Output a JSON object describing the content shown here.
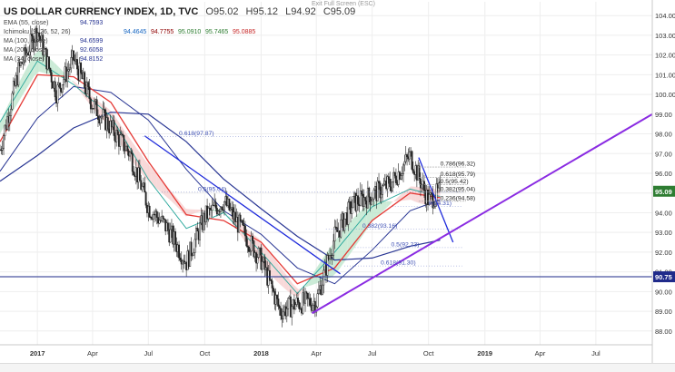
{
  "header": {
    "title": "US DOLLAR CURRENCY INDEX, 1D, TVC",
    "open": "O95.02",
    "high": "H95.12",
    "low": "L94.92",
    "close": "C95.09"
  },
  "exit_fullscreen": "Exit Full Screen (ESC)",
  "indicators": [
    {
      "name": "EMA (55, close)",
      "values": [
        "94.7593"
      ],
      "color": "#e53935"
    },
    {
      "name": "Ichimoku (9, 26, 52, 26)",
      "values": [
        "94.4645",
        "94.7755",
        "95.0910",
        "95.7465",
        "95.0885"
      ],
      "color": "#26a69a"
    },
    {
      "name": "MA (100, close)",
      "values": [
        "94.6599"
      ],
      "color": "#283593"
    },
    {
      "name": "MA (200, close)",
      "values": [
        "92.6058"
      ],
      "color": "#283593"
    },
    {
      "name": "MA (34, close)",
      "values": [
        "94.8152"
      ],
      "color": "#283593"
    }
  ],
  "colors": {
    "candle_up": "#333333",
    "candle_down": "#222222",
    "ema": "#e53935",
    "ma": "#283593",
    "tenkan": "#26a69a",
    "cloud_bull": "#b9e4c9",
    "cloud_bear": "#f6cccc",
    "trendline": "#1e2adb",
    "support_line": "#8a2be2",
    "fib": "#3f51b5",
    "price_badge": "#2e7d32",
    "level_badge": "#1f2a8a"
  },
  "chart_data": {
    "type": "candlestick",
    "title": "US DOLLAR CURRENCY INDEX, 1D, TVC",
    "ylim": [
      87.3,
      104.7
    ],
    "y_ticks": [
      "104.00",
      "103.00",
      "102.00",
      "101.00",
      "100.00",
      "99.00",
      "98.00",
      "97.00",
      "96.00",
      "95.00",
      "94.00",
      "93.00",
      "92.00",
      "91.00",
      "90.00",
      "89.00",
      "88.00"
    ],
    "x_ticks": [
      {
        "label": "2017",
        "t": "2017-01"
      },
      {
        "label": "Apr",
        "t": "2017-04"
      },
      {
        "label": "Jul",
        "t": "2017-07"
      },
      {
        "label": "Oct",
        "t": "2017-10"
      },
      {
        "label": "2018",
        "t": "2018-01"
      },
      {
        "label": "Apr",
        "t": "2018-04"
      },
      {
        "label": "Jul",
        "t": "2018-07"
      },
      {
        "label": "Oct",
        "t": "2018-10"
      },
      {
        "label": "2019",
        "t": "2019-01"
      },
      {
        "label": "Apr",
        "t": "2019-04"
      },
      {
        "label": "Jul",
        "t": "2019-07"
      }
    ],
    "xlim": [
      "2016-11",
      "2019-10"
    ],
    "price_path": [
      [
        "2016-11",
        97.2
      ],
      [
        "2016-12",
        101.2
      ],
      [
        "2017-01",
        103.3
      ],
      [
        "2017-02",
        100.1
      ],
      [
        "2017-03",
        101.8
      ],
      [
        "2017-04",
        99.5
      ],
      [
        "2017-05",
        98.3
      ],
      [
        "2017-06",
        97.0
      ],
      [
        "2017-07",
        94.3
      ],
      [
        "2017-08",
        93.2
      ],
      [
        "2017-09",
        91.5
      ],
      [
        "2017-10",
        93.8
      ],
      [
        "2017-11",
        94.6
      ],
      [
        "2017-12",
        93.1
      ],
      [
        "2018-01",
        91.6
      ],
      [
        "2018-02",
        89.0
      ],
      [
        "2018-03",
        89.4
      ],
      [
        "2018-04",
        89.5
      ],
      [
        "2018-05",
        92.8
      ],
      [
        "2018-06",
        94.5
      ],
      [
        "2018-07",
        94.9
      ],
      [
        "2018-08",
        95.5
      ],
      [
        "2018-09",
        96.9
      ],
      [
        "2018-10",
        94.6
      ],
      [
        "2018-10-20",
        95.09
      ]
    ],
    "ema55": [
      [
        "2016-11",
        97.6
      ],
      [
        "2017-01",
        101.0
      ],
      [
        "2017-03",
        100.9
      ],
      [
        "2017-05",
        99.6
      ],
      [
        "2017-07",
        96.6
      ],
      [
        "2017-09",
        93.9
      ],
      [
        "2017-11",
        93.6
      ],
      [
        "2018-01",
        92.5
      ],
      [
        "2018-03",
        90.4
      ],
      [
        "2018-05",
        91.2
      ],
      [
        "2018-07",
        93.6
      ],
      [
        "2018-09",
        95.0
      ],
      [
        "2018-10-20",
        94.76
      ]
    ],
    "ma34": [
      [
        "2016-11",
        98.6
      ],
      [
        "2017-01",
        101.7
      ],
      [
        "2017-03",
        100.5
      ],
      [
        "2017-05",
        98.9
      ],
      [
        "2017-07",
        95.7
      ],
      [
        "2017-09",
        93.2
      ],
      [
        "2017-11",
        94.0
      ],
      [
        "2018-01",
        92.0
      ],
      [
        "2018-03",
        89.9
      ],
      [
        "2018-05",
        92.0
      ],
      [
        "2018-07",
        94.3
      ],
      [
        "2018-09",
        95.2
      ],
      [
        "2018-10-20",
        94.82
      ]
    ],
    "ma100": [
      [
        "2016-11",
        96.1
      ],
      [
        "2017-01",
        98.8
      ],
      [
        "2017-03",
        100.4
      ],
      [
        "2017-05",
        100.1
      ],
      [
        "2017-07",
        98.7
      ],
      [
        "2017-09",
        96.2
      ],
      [
        "2017-11",
        94.1
      ],
      [
        "2018-01",
        92.9
      ],
      [
        "2018-03",
        91.2
      ],
      [
        "2018-05",
        90.4
      ],
      [
        "2018-07",
        92.1
      ],
      [
        "2018-09",
        94.1
      ],
      [
        "2018-10-20",
        94.66
      ]
    ],
    "ma200": [
      [
        "2016-11",
        95.6
      ],
      [
        "2017-01",
        96.9
      ],
      [
        "2017-03",
        98.3
      ],
      [
        "2017-05",
        99.1
      ],
      [
        "2017-07",
        99.0
      ],
      [
        "2017-09",
        97.6
      ],
      [
        "2017-11",
        95.7
      ],
      [
        "2018-01",
        94.2
      ],
      [
        "2018-03",
        92.8
      ],
      [
        "2018-05",
        91.6
      ],
      [
        "2018-07",
        91.7
      ],
      [
        "2018-09",
        92.3
      ],
      [
        "2018-10-20",
        92.61
      ]
    ],
    "fib_upper": [
      {
        "label": "0.786(96.32)",
        "value": 96.32
      },
      {
        "label": "0.618(95.79)",
        "value": 95.79
      },
      {
        "label": "0.5(95.42)",
        "value": 95.42
      },
      {
        "label": "0.382(95.04)",
        "value": 95.04
      },
      {
        "label": "0.236(94.58)",
        "value": 94.58
      }
    ],
    "fib_lower": [
      {
        "label": "0.618(97.87)",
        "value": 97.87
      },
      {
        "label": "0.5(95.04)",
        "value": 95.04
      },
      {
        "label": "0(94.31)",
        "value": 94.31
      },
      {
        "label": "0.382(93.16)",
        "value": 93.16
      },
      {
        "label": "0.5(92.23)",
        "value": 92.23
      },
      {
        "label": "0.618(91.30)",
        "value": 91.3
      }
    ],
    "horizontal_level": 90.75,
    "last_price": 95.09,
    "price_badges": [
      "95.09",
      "90.75"
    ],
    "trendlines": [
      {
        "name": "downtrend-2017",
        "from": [
          "2017-06-25",
          97.9
        ],
        "to": [
          "2018-05-10",
          90.9
        ]
      },
      {
        "name": "downtrend-2018",
        "from": [
          "2018-09-15",
          96.8
        ],
        "to": [
          "2018-11-10",
          92.5
        ]
      },
      {
        "name": "support-uptrend",
        "from": [
          "2018-03-25",
          88.9
        ],
        "to": [
          "2019-10",
          99.0
        ]
      }
    ]
  }
}
